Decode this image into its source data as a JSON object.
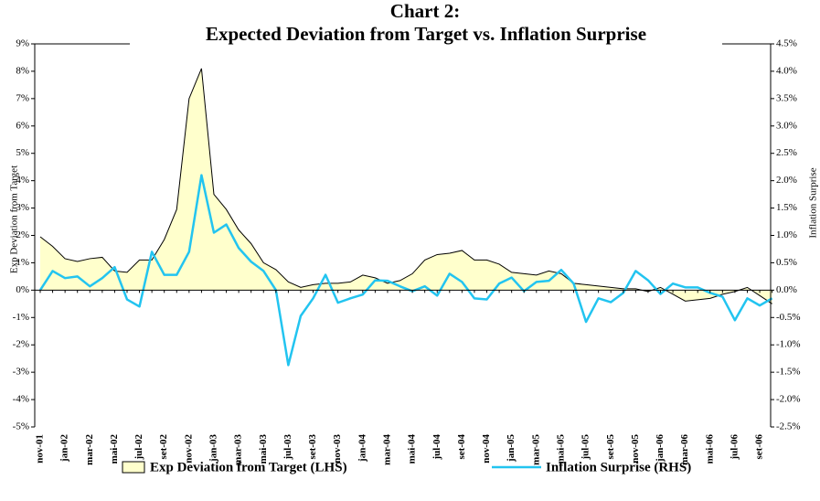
{
  "chart_data": {
    "type": "area-line",
    "title": "Chart 2:",
    "subtitle": "Expected Deviation from Target vs. Inflation Surprise",
    "y_label": "Exp Deviation from Target",
    "y2_label": "Inflation  Surprise",
    "categories": [
      "nov-01",
      null,
      "jan-02",
      null,
      "mar-02",
      null,
      "mai-02",
      null,
      "jul-02",
      null,
      "set-02",
      null,
      "nov-02",
      null,
      "jan-03",
      null,
      "mar-03",
      null,
      "mai-03",
      null,
      "jul-03",
      null,
      "set-03",
      null,
      "nov-03",
      null,
      "jan-04",
      null,
      "mar-04",
      null,
      "mai-04",
      null,
      "jul-04",
      null,
      "set-04",
      null,
      "nov-04",
      null,
      "jan-05",
      null,
      "mar-05",
      null,
      "mai-05",
      null,
      "jul-05",
      null,
      "set-05",
      null,
      "nov-05",
      null,
      "jan-06",
      null,
      "mar-06",
      null,
      "mai-06",
      null,
      "jul-06",
      null,
      "set-06",
      null
    ],
    "series": [
      {
        "name": "Exp Deviation from Target (LHS)",
        "color": "#ffffcc",
        "axis": "y",
        "values": [
          1.95,
          1.6,
          1.15,
          1.05,
          1.15,
          1.2,
          0.7,
          0.65,
          1.1,
          1.1,
          1.85,
          2.95,
          7.0,
          8.1,
          3.5,
          2.95,
          2.2,
          1.7,
          1.0,
          0.75,
          0.3,
          0.1,
          0.2,
          0.25,
          0.25,
          0.3,
          0.55,
          0.45,
          0.25,
          0.35,
          0.6,
          1.1,
          1.3,
          1.35,
          1.45,
          1.1,
          1.1,
          0.95,
          0.65,
          0.6,
          0.55,
          0.7,
          0.6,
          0.25,
          0.2,
          0.15,
          0.1,
          0.05,
          0.05,
          -0.05,
          0.1,
          -0.15,
          -0.4,
          -0.35,
          -0.3,
          -0.15,
          -0.05,
          0.1,
          -0.2,
          -0.5
        ]
      },
      {
        "name": "Inflation Surprise (RHS)",
        "color": "#22c4f0",
        "axis": "y2",
        "values": [
          0.0,
          0.35,
          0.22,
          0.25,
          0.07,
          0.22,
          0.42,
          -0.17,
          -0.3,
          0.7,
          0.28,
          0.28,
          0.7,
          2.1,
          1.05,
          1.2,
          0.77,
          0.52,
          0.35,
          0.0,
          -1.37,
          -0.47,
          -0.15,
          0.28,
          -0.23,
          -0.15,
          -0.08,
          0.18,
          0.17,
          0.07,
          -0.02,
          0.07,
          -0.1,
          0.3,
          0.15,
          -0.15,
          -0.17,
          0.12,
          0.23,
          -0.02,
          0.15,
          0.17,
          0.37,
          0.12,
          -0.58,
          -0.15,
          -0.22,
          -0.05,
          0.35,
          0.18,
          -0.07,
          0.12,
          0.05,
          0.05,
          -0.05,
          -0.12,
          -0.55,
          -0.15,
          -0.28,
          -0.15
        ]
      }
    ],
    "ylim": [
      -5,
      9
    ],
    "yticks": [
      {
        "value": -5,
        "label": "-5%"
      },
      {
        "value": -4,
        "label": "-4%"
      },
      {
        "value": -3,
        "label": "-3%"
      },
      {
        "value": -2,
        "label": "-2%"
      },
      {
        "value": -1,
        "label": "-1%"
      },
      {
        "value": 0,
        "label": "0%"
      },
      {
        "value": 1,
        "label": "1%"
      },
      {
        "value": 2,
        "label": "2%"
      },
      {
        "value": 3,
        "label": "3%"
      },
      {
        "value": 4,
        "label": "4%"
      },
      {
        "value": 5,
        "label": "5%"
      },
      {
        "value": 6,
        "label": "6%"
      },
      {
        "value": 7,
        "label": "7%"
      },
      {
        "value": 8,
        "label": "8%"
      },
      {
        "value": 9,
        "label": "9%"
      }
    ],
    "y2lim": [
      -2.5,
      4.5
    ],
    "y2ticks": [
      {
        "value": -2.5,
        "label": "-2.5%"
      },
      {
        "value": -2.0,
        "label": "-2.0%"
      },
      {
        "value": -1.5,
        "label": "-1.5%"
      },
      {
        "value": -1.0,
        "label": "-1.0%"
      },
      {
        "value": -0.5,
        "label": "-0.5%"
      },
      {
        "value": 0.0,
        "label": "0.0%"
      },
      {
        "value": 0.5,
        "label": "0.5%"
      },
      {
        "value": 1.0,
        "label": "1.0%"
      },
      {
        "value": 1.5,
        "label": "1.5%"
      },
      {
        "value": 2.0,
        "label": "2.0%"
      },
      {
        "value": 2.5,
        "label": "2.5%"
      },
      {
        "value": 3.0,
        "label": "3.0%"
      },
      {
        "value": 3.5,
        "label": "3.5%"
      },
      {
        "value": 4.0,
        "label": "4.0%"
      },
      {
        "value": 4.5,
        "label": "4.5%"
      }
    ],
    "grid": false,
    "legend": "bottom"
  }
}
